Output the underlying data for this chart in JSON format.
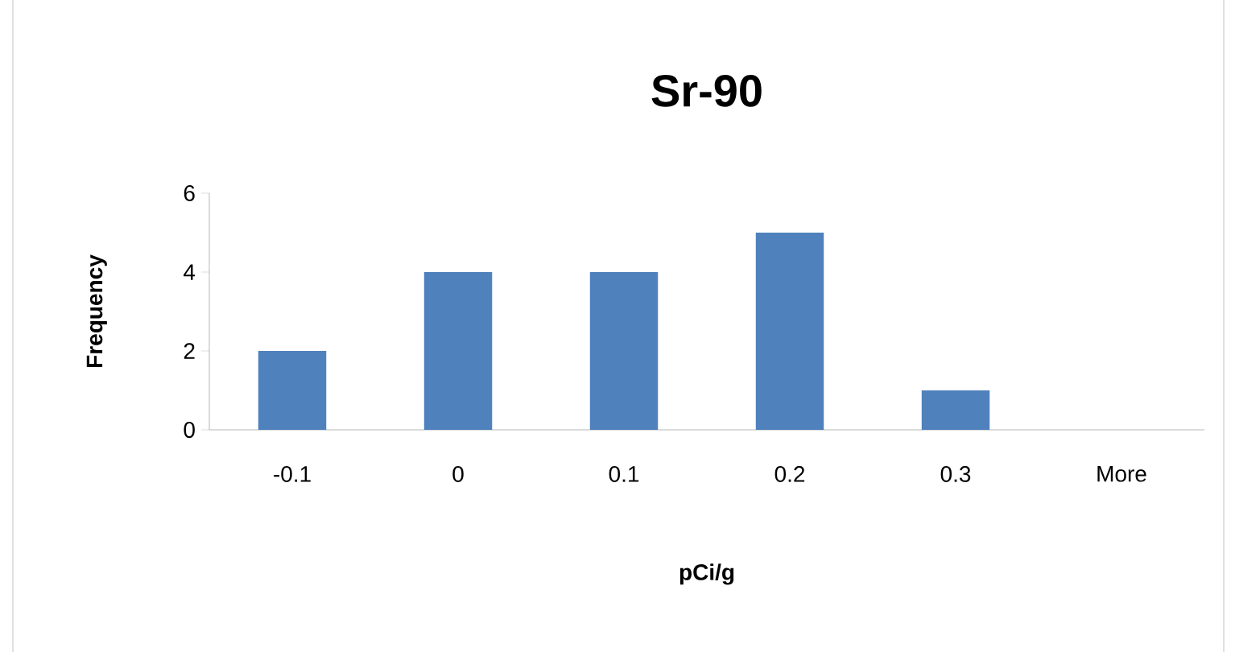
{
  "chart_data": {
    "type": "bar",
    "title": "Sr-90",
    "xlabel": "pCi/g",
    "ylabel": "Frequency",
    "categories": [
      "-0.1",
      "0",
      "0.1",
      "0.2",
      "0.3",
      "More"
    ],
    "values": [
      2,
      4,
      4,
      5,
      1,
      0
    ],
    "color": "#4f81bd",
    "ylim": [
      0,
      6
    ],
    "yticks": [
      0,
      2,
      4,
      6
    ]
  }
}
